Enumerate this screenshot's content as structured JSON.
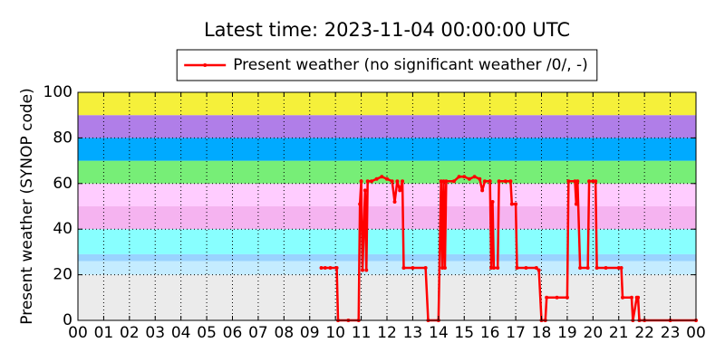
{
  "chart_data": {
    "type": "line",
    "title": "Latest time: 2023-11-04 00:00:00 UTC",
    "y_label": "Present weather (SYNOP code)",
    "legend": "upper center",
    "grid": true,
    "xlim": [
      0,
      24
    ],
    "ylim": [
      0,
      100
    ],
    "yticks": [
      0,
      20,
      40,
      60,
      80,
      100
    ],
    "xticks": [
      {
        "value": 0,
        "label": "00"
      },
      {
        "value": 1,
        "label": "01"
      },
      {
        "value": 2,
        "label": "02"
      },
      {
        "value": 3,
        "label": "03"
      },
      {
        "value": 4,
        "label": "04"
      },
      {
        "value": 5,
        "label": "05"
      },
      {
        "value": 6,
        "label": "06"
      },
      {
        "value": 7,
        "label": "07"
      },
      {
        "value": 8,
        "label": "08"
      },
      {
        "value": 9,
        "label": "09"
      },
      {
        "value": 10,
        "label": "10"
      },
      {
        "value": 11,
        "label": "11"
      },
      {
        "value": 12,
        "label": "12"
      },
      {
        "value": 13,
        "label": "13"
      },
      {
        "value": 14,
        "label": "14"
      },
      {
        "value": 15,
        "label": "15"
      },
      {
        "value": 16,
        "label": "16"
      },
      {
        "value": 17,
        "label": "17"
      },
      {
        "value": 18,
        "label": "18"
      },
      {
        "value": 19,
        "label": "19"
      },
      {
        "value": 20,
        "label": "20"
      },
      {
        "value": 21,
        "label": "21"
      },
      {
        "value": 22,
        "label": "22"
      },
      {
        "value": 23,
        "label": "23"
      },
      {
        "value": 24,
        "label": "00"
      }
    ],
    "bands": [
      {
        "from": 0,
        "to": 20,
        "color": "#ebebeb"
      },
      {
        "from": 20,
        "to": 26,
        "color": "#c4ecff"
      },
      {
        "from": 26,
        "to": 29,
        "color": "#99d3ff"
      },
      {
        "from": 29,
        "to": 40,
        "color": "#88ffff"
      },
      {
        "from": 40,
        "to": 50,
        "color": "#f5b3f0"
      },
      {
        "from": 50,
        "to": 60,
        "color": "#ffccff"
      },
      {
        "from": 60,
        "to": 70,
        "color": "#77ee77"
      },
      {
        "from": 70,
        "to": 80,
        "color": "#00aaff"
      },
      {
        "from": 80,
        "to": 90,
        "color": "#b07ee8"
      },
      {
        "from": 90,
        "to": 100,
        "color": "#f5f03a"
      }
    ],
    "series": [
      {
        "name": "Present weather (no significant weather /0/, -)",
        "color": "#ff0000",
        "x": [
          9.45,
          9.6,
          9.8,
          10.05,
          10.1,
          10.5,
          10.9,
          10.95,
          11.0,
          11.05,
          11.15,
          11.2,
          11.25,
          11.4,
          11.6,
          11.8,
          12.0,
          12.2,
          12.3,
          12.4,
          12.5,
          12.6,
          12.65,
          13.0,
          13.5,
          13.6,
          14.0,
          14.1,
          14.15,
          14.2,
          14.25,
          14.3,
          14.6,
          14.8,
          15.0,
          15.2,
          15.4,
          15.6,
          15.7,
          15.8,
          16.0,
          16.05,
          16.1,
          16.15,
          16.3,
          16.35,
          16.6,
          16.8,
          16.85,
          17.0,
          17.05,
          17.4,
          17.8,
          17.9,
          18.0,
          18.15,
          18.2,
          18.6,
          19.0,
          19.05,
          19.3,
          19.35,
          19.4,
          19.5,
          19.8,
          19.85,
          20.0,
          20.1,
          20.15,
          20.5,
          21.0,
          21.1,
          21.15,
          21.5,
          21.55,
          21.7,
          21.75,
          21.8,
          22.0,
          23.0,
          24.0
        ],
        "values": [
          23,
          23,
          23,
          23,
          0,
          0,
          0,
          51,
          61,
          22,
          57,
          22,
          61,
          61,
          62,
          63,
          62,
          61,
          52,
          61,
          57,
          61,
          23,
          23,
          23,
          0,
          0,
          61,
          23,
          61,
          23,
          61,
          61,
          63,
          63,
          62,
          63,
          62,
          57,
          61,
          61,
          23,
          52,
          23,
          23,
          61,
          61,
          61,
          51,
          51,
          23,
          23,
          23,
          22,
          0,
          0,
          10,
          10,
          10,
          61,
          61,
          51,
          61,
          23,
          23,
          61,
          61,
          61,
          23,
          23,
          23,
          23,
          10,
          10,
          0,
          10,
          10,
          0,
          0,
          0,
          0
        ]
      }
    ]
  }
}
